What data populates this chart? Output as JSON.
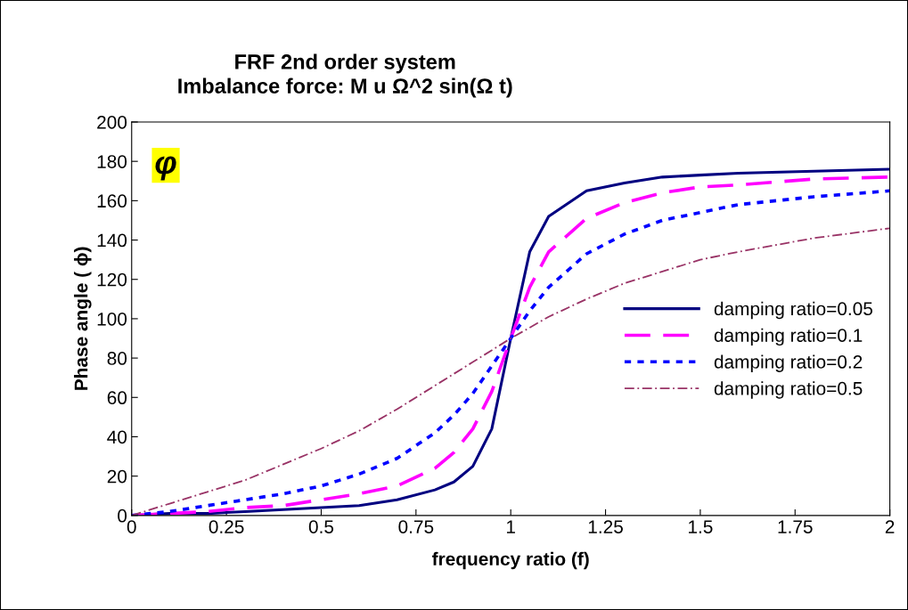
{
  "chart_data": {
    "type": "line",
    "title": "FRF 2nd order system\nImbalance force: M u Ω^2 sin(Ω t)",
    "xlabel": "frequency ratio (f)",
    "ylabel": "Phase angle ( ϕ)",
    "xlim": [
      0,
      2
    ],
    "xticks": [
      0,
      0.25,
      0.5,
      0.75,
      1,
      1.25,
      1.5,
      1.75,
      2
    ],
    "ylim": [
      0,
      200
    ],
    "yticks": [
      0,
      20,
      40,
      60,
      80,
      100,
      120,
      140,
      160,
      180,
      200
    ],
    "grid": false,
    "legend": "right",
    "annotations": [
      "φ"
    ],
    "series": [
      {
        "name": "damping ratio=0.05",
        "color": "#000080",
        "line_style": "solid",
        "x": [
          0,
          0.1,
          0.2,
          0.3,
          0.4,
          0.5,
          0.6,
          0.7,
          0.8,
          0.85,
          0.9,
          0.95,
          1,
          1.05,
          1.1,
          1.2,
          1.3,
          1.4,
          1.5,
          1.6,
          1.8,
          2
        ],
        "values": [
          0,
          1,
          1,
          2,
          3,
          4,
          5,
          8,
          13,
          17,
          25,
          44,
          90,
          134,
          152,
          165,
          169,
          172,
          173,
          174,
          175,
          176
        ]
      },
      {
        "name": "damping ratio=0.1",
        "color": "#ff00ff",
        "line_style": "dashed",
        "x": [
          0,
          0.1,
          0.2,
          0.3,
          0.4,
          0.5,
          0.6,
          0.7,
          0.8,
          0.85,
          0.9,
          0.95,
          1,
          1.05,
          1.1,
          1.2,
          1.3,
          1.4,
          1.5,
          1.6,
          1.8,
          2
        ],
        "values": [
          0,
          1,
          2,
          4,
          5,
          8,
          11,
          15,
          24,
          32,
          44,
          63,
          90,
          116,
          134,
          151,
          159,
          164,
          167,
          168,
          171,
          172
        ]
      },
      {
        "name": "damping ratio=0.2",
        "color": "#0000ff",
        "line_style": "dotted",
        "x": [
          0,
          0.1,
          0.2,
          0.3,
          0.4,
          0.5,
          0.6,
          0.7,
          0.8,
          0.85,
          0.9,
          0.95,
          1,
          1.05,
          1.1,
          1.2,
          1.3,
          1.4,
          1.5,
          1.6,
          1.8,
          2
        ],
        "values": [
          0,
          2,
          5,
          8,
          11,
          15,
          21,
          29,
          42,
          51,
          62,
          76,
          90,
          104,
          116,
          133,
          143,
          150,
          154,
          158,
          162,
          165
        ]
      },
      {
        "name": "damping ratio=0.5",
        "color": "#993366",
        "line_style": "dashdot",
        "x": [
          0,
          0.1,
          0.2,
          0.3,
          0.4,
          0.5,
          0.6,
          0.7,
          0.8,
          0.9,
          1,
          1.1,
          1.2,
          1.3,
          1.4,
          1.5,
          1.6,
          1.8,
          2
        ],
        "values": [
          0,
          6,
          12,
          18,
          26,
          34,
          43,
          54,
          66,
          78,
          90,
          101,
          110,
          118,
          124,
          130,
          134,
          141,
          146
        ]
      }
    ]
  }
}
